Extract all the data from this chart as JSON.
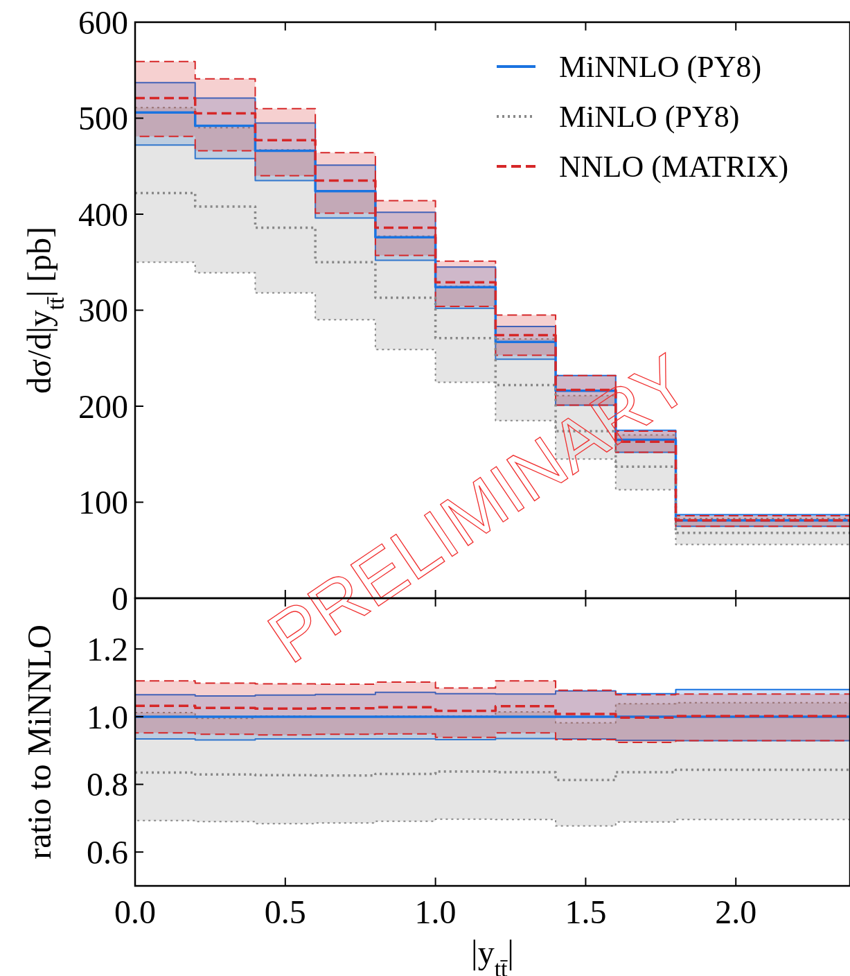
{
  "chart_data": [
    {
      "type": "step",
      "ylabel": "dσ/d|y$_{tt̄}$| [pb]",
      "x": [
        0,
        0.2,
        0.4,
        0.6,
        0.8,
        1.0,
        1.2,
        1.4,
        1.6,
        1.8,
        2.38
      ],
      "xlim": [
        0,
        2.38
      ],
      "xticks": [
        0,
        0.5,
        1.0,
        1.5,
        2.0
      ],
      "ylim": [
        0,
        600
      ],
      "yticks": [
        0,
        100,
        200,
        300,
        400,
        500,
        600
      ],
      "tick_labels": "y",
      "legend": "top right",
      "annotations": [
        "PRELIMINARY"
      ],
      "series": [
        {
          "name": "MiNNLO (PY8)",
          "color": "#1a73e0",
          "line_style": "solid",
          "values": [
            506,
            492,
            466,
            424,
            376,
            324,
            267,
            216,
            165,
            81,
            81
          ],
          "lower": [
            472,
            458,
            435,
            396,
            352,
            302,
            249,
            201,
            152,
            75,
            75
          ],
          "upper": [
            537,
            521,
            495,
            451,
            402,
            345,
            283,
            232,
            175,
            87,
            87
          ]
        },
        {
          "name": "MiNLO (PY8)",
          "color": "#888888",
          "line_style": "dotted",
          "values": [
            422,
            408,
            386,
            350,
            313,
            271,
            222,
            174,
            137,
            68,
            68
          ],
          "lower": [
            350,
            339,
            318,
            290,
            259,
            225,
            185,
            145,
            113,
            56,
            56
          ],
          "upper": [
            511,
            490,
            467,
            424,
            377,
            325,
            270,
            211,
            170,
            83,
            83
          ]
        },
        {
          "name": "NNLO (MATRIX)",
          "color": "#d62728",
          "line_style": "dashed",
          "values": [
            521,
            505,
            477,
            435,
            386,
            329,
            274,
            217,
            163,
            81,
            81
          ],
          "lower": [
            481,
            466,
            440,
            401,
            357,
            304,
            253,
            201,
            152,
            75,
            75
          ],
          "upper": [
            559,
            541,
            510,
            464,
            414,
            351,
            295,
            232,
            174,
            86,
            86
          ]
        }
      ]
    },
    {
      "type": "step",
      "ylabel": "ratio to MiNNLO",
      "xlabel": "|y$_{tt̄}$|",
      "x": [
        0,
        0.2,
        0.4,
        0.6,
        0.8,
        1.0,
        1.2,
        1.4,
        1.6,
        1.8,
        2.38
      ],
      "xlim": [
        0,
        2.38
      ],
      "xticks": [
        {
          "value": 0,
          "label": "0.0"
        },
        {
          "value": 0.5,
          "label": "0.5"
        },
        {
          "value": 1.0,
          "label": "1.0"
        },
        {
          "value": 1.5,
          "label": "1.5"
        },
        {
          "value": 2.0,
          "label": "2.0"
        }
      ],
      "ylim": [
        0.5,
        1.35
      ],
      "yticks": [
        {
          "value": 0.6,
          "label": "0.6"
        },
        {
          "value": 0.8,
          "label": "0.8"
        },
        {
          "value": 1.0,
          "label": "1.0"
        },
        {
          "value": 1.2,
          "label": "1.2"
        }
      ],
      "series": [
        {
          "color": "#1a73e0",
          "line_style": "solid",
          "values": [
            1,
            1,
            1,
            1,
            1,
            1,
            1,
            1,
            1,
            1,
            1
          ],
          "lower": [
            0.934,
            0.931,
            0.934,
            0.934,
            0.934,
            0.932,
            0.935,
            0.934,
            0.93,
            0.929,
            0.929
          ],
          "upper": [
            1.065,
            1.061,
            1.064,
            1.066,
            1.072,
            1.068,
            1.067,
            1.076,
            1.068,
            1.08,
            1.08
          ]
        },
        {
          "color": "#888888",
          "line_style": "dotted",
          "values": [
            0.835,
            0.829,
            0.827,
            0.826,
            0.831,
            0.838,
            0.836,
            0.813,
            0.836,
            0.843,
            0.843
          ],
          "lower": [
            0.693,
            0.69,
            0.684,
            0.686,
            0.691,
            0.697,
            0.696,
            0.677,
            0.689,
            0.696,
            0.696
          ],
          "upper": [
            1.012,
            0.995,
            1.002,
            1.0,
            1.002,
            1.002,
            1.014,
            0.982,
            1.038,
            1.041,
            1.041
          ]
        },
        {
          "color": "#d62728",
          "line_style": "dashed",
          "values": [
            1.032,
            1.026,
            1.024,
            1.025,
            1.028,
            1.017,
            1.031,
            1.008,
            0.997,
            1.002,
            1.002
          ],
          "lower": [
            0.952,
            0.948,
            0.946,
            0.948,
            0.949,
            0.939,
            0.952,
            0.932,
            0.924,
            0.929,
            0.929
          ],
          "upper": [
            1.106,
            1.099,
            1.097,
            1.096,
            1.102,
            1.085,
            1.106,
            1.078,
            1.065,
            1.067,
            1.067
          ]
        }
      ]
    }
  ]
}
